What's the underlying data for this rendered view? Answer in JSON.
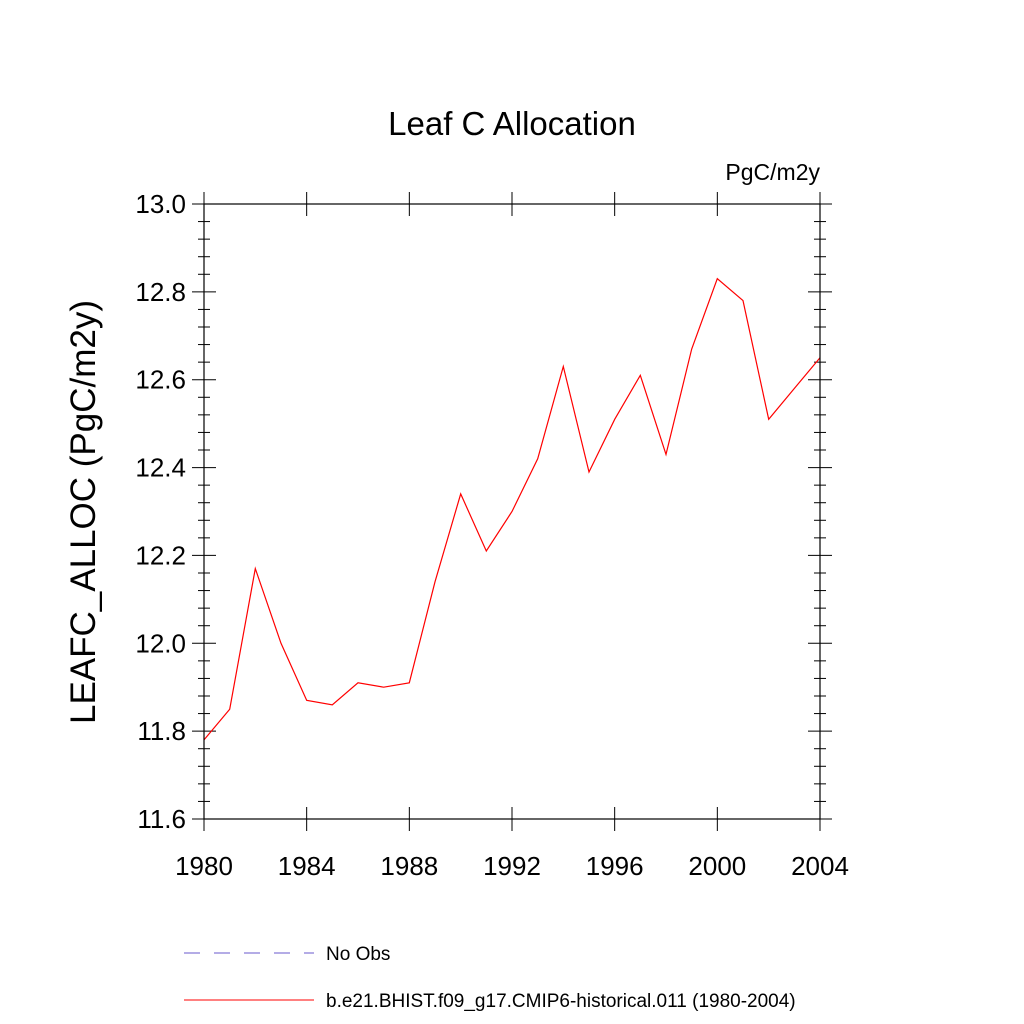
{
  "chart_data": {
    "type": "line",
    "title": "Leaf C Allocation",
    "units": "PgC/m2y",
    "ylabel": "LEAFC_ALLOC  (PgC/m2y)",
    "xlabel": "",
    "xlim": [
      1980,
      2004
    ],
    "ylim": [
      11.6,
      13.0
    ],
    "x_ticks": [
      1980,
      1984,
      1988,
      1992,
      1996,
      2000,
      2004
    ],
    "x_tick_labels": [
      "1980",
      "1984",
      "1988",
      "1992",
      "1996",
      "2000",
      "2004"
    ],
    "y_ticks": [
      11.6,
      11.8,
      12.0,
      12.2,
      12.4,
      12.6,
      12.8,
      13.0
    ],
    "y_tick_labels": [
      "11.6",
      "11.8",
      "12.0",
      "12.2",
      "12.4",
      "12.6",
      "12.8",
      "13.0"
    ],
    "grid": false,
    "legend_position": "bottom",
    "series": [
      {
        "name": "b.e21.BHIST.f09_g17.CMIP6-historical.011 (1980-2004)",
        "color": "#ff0000",
        "dash": "solid",
        "x": [
          1980,
          1981,
          1982,
          1983,
          1984,
          1985,
          1986,
          1987,
          1988,
          1989,
          1990,
          1991,
          1992,
          1993,
          1994,
          1995,
          1996,
          1997,
          1998,
          1999,
          2000,
          2001,
          2002,
          2003,
          2004
        ],
        "y": [
          11.78,
          11.85,
          12.17,
          12.0,
          11.87,
          11.86,
          11.91,
          11.9,
          11.91,
          12.14,
          12.34,
          12.21,
          12.3,
          12.42,
          12.63,
          12.39,
          12.51,
          12.61,
          12.43,
          12.67,
          12.83,
          12.78,
          12.51,
          12.58,
          12.65
        ]
      }
    ],
    "legend": [
      {
        "label": "No Obs",
        "color": "#6a5acd",
        "dash": "dashed"
      },
      {
        "label": "b.e21.BHIST.f09_g17.CMIP6-historical.011 (1980-2004)",
        "color": "#ff0000",
        "dash": "solid"
      }
    ]
  }
}
